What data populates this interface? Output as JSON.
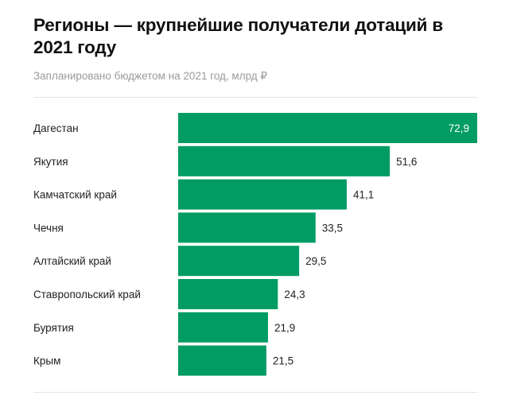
{
  "chart_data": {
    "type": "bar",
    "orientation": "horizontal",
    "title": "Регионы — крупнейшие получатели дотаций в 2021 году",
    "subtitle": "Запланировано бюджетом на 2021 год, млрд ₽",
    "categories": [
      "Дагестан",
      "Якутия",
      "Камчатский край",
      "Чечня",
      "Алтайский край",
      "Ставропольский край",
      "Бурятия",
      "Крым"
    ],
    "values": [
      72.9,
      51.6,
      41.1,
      33.5,
      29.5,
      24.3,
      21.9,
      21.5
    ],
    "value_labels": [
      "72,9",
      "51,6",
      "41,1",
      "33,5",
      "29,5",
      "24,3",
      "21,9",
      "21,5"
    ],
    "xlim": [
      0,
      72.9
    ],
    "grid": false,
    "legend": "none",
    "bar_color": "#009c64"
  }
}
